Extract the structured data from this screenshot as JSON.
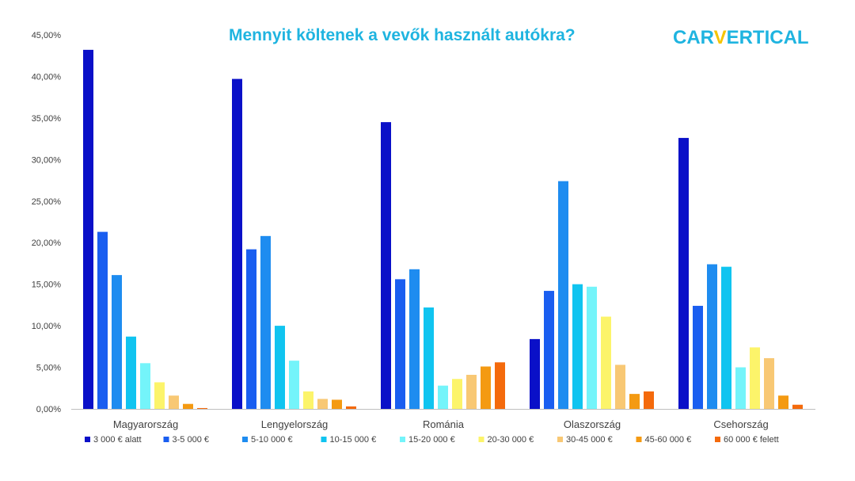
{
  "title": "Mennyit költenek a vevők használt autókra?",
  "logo": {
    "part1": "CAR",
    "part2": "V",
    "part3": "ERTICAL"
  },
  "chart_data": {
    "type": "bar",
    "title": "Mennyit költenek a vevők használt autókra?",
    "xlabel": "",
    "ylabel": "",
    "ylim": [
      0,
      45
    ],
    "yticks": [
      "0,00%",
      "5,00%",
      "10,00%",
      "15,00%",
      "20,00%",
      "25,00%",
      "30,00%",
      "35,00%",
      "40,00%",
      "45,00%"
    ],
    "categories": [
      "Magyarország",
      "Lengyelország",
      "Románia",
      "Olaszország",
      "Csehország"
    ],
    "legend_position": "bottom",
    "series": [
      {
        "name": "3 000 € alatt",
        "color": "#0a10c8",
        "values": [
          43.2,
          39.7,
          34.5,
          8.4,
          32.6
        ]
      },
      {
        "name": "3-5 000 €",
        "color": "#1a5ef0",
        "values": [
          21.3,
          19.2,
          15.6,
          14.2,
          12.4
        ]
      },
      {
        "name": "5-10 000 €",
        "color": "#1e8cf0",
        "values": [
          16.1,
          20.8,
          16.8,
          27.4,
          17.4
        ]
      },
      {
        "name": "10-15 000 €",
        "color": "#10c4f0",
        "values": [
          8.7,
          10.0,
          12.2,
          15.0,
          17.1
        ]
      },
      {
        "name": "15-20 000 €",
        "color": "#74f4fa",
        "values": [
          5.5,
          5.8,
          2.8,
          14.7,
          5.0
        ]
      },
      {
        "name": "20-30 000 €",
        "color": "#fcf46a",
        "values": [
          3.2,
          2.1,
          3.6,
          11.1,
          7.4
        ]
      },
      {
        "name": "30-45 000 €",
        "color": "#f8c874",
        "values": [
          1.6,
          1.2,
          4.1,
          5.3,
          6.1
        ]
      },
      {
        "name": "45-60 000 €",
        "color": "#f49a12",
        "values": [
          0.6,
          1.1,
          5.1,
          1.8,
          1.6
        ]
      },
      {
        "name": "60 000 € felett",
        "color": "#f46a0c",
        "values": [
          0.1,
          0.3,
          5.6,
          2.1,
          0.5
        ]
      }
    ]
  }
}
